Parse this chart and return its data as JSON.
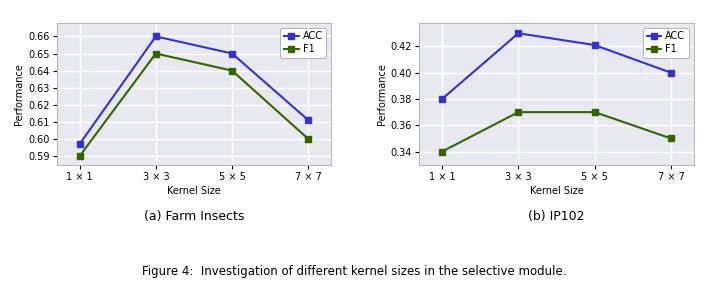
{
  "kernel_labels": [
    "1 × 1",
    "3 × 3",
    "5 × 5",
    "7 × 7"
  ],
  "farm_acc": [
    0.597,
    0.66,
    0.65,
    0.611
  ],
  "farm_f1": [
    0.59,
    0.65,
    0.64,
    0.6
  ],
  "ip102_acc": [
    0.38,
    0.43,
    0.421,
    0.4
  ],
  "ip102_f1": [
    0.34,
    0.37,
    0.37,
    0.35
  ],
  "farm_ylim": [
    0.585,
    0.668
  ],
  "farm_yticks": [
    0.59,
    0.6,
    0.61,
    0.62,
    0.63,
    0.64,
    0.65,
    0.66
  ],
  "ip102_ylim": [
    0.33,
    0.438
  ],
  "ip102_yticks": [
    0.34,
    0.36,
    0.38,
    0.4,
    0.42
  ],
  "acc_color": "#3333cc",
  "f1_color": "#336600",
  "marker": "s",
  "linewidth": 1.5,
  "markersize": 4,
  "acc_label": "ACC",
  "f1_label": "F1",
  "xlabel": "Kernel Size",
  "ylabel": "Performance",
  "title_a": "(a) Farm Insects",
  "title_b": "(b) IP102",
  "figure_caption": "Figure 4:  Investigation of different kernel sizes in the selective module.",
  "bg_color": "#e8e8f0",
  "grid_color": "white",
  "legend_fontsize": 7,
  "axis_fontsize": 7,
  "tick_fontsize": 7,
  "caption_fontsize": 8.5,
  "subtitle_fontsize": 9
}
